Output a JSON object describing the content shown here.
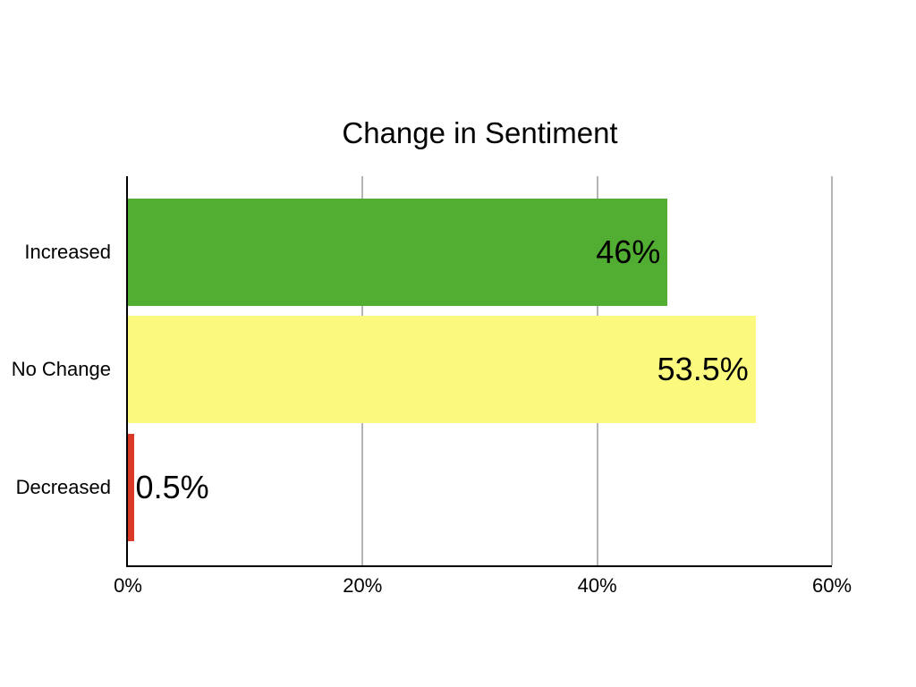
{
  "chart_data": {
    "type": "bar",
    "orientation": "horizontal",
    "title": "Change in Sentiment",
    "categories": [
      "Increased",
      "No Change",
      "Decreased"
    ],
    "values": [
      46,
      53.5,
      0.5
    ],
    "value_labels": [
      "46%",
      "53.5%",
      "0.5%"
    ],
    "bar_colors": [
      "#52AE32",
      "#FBFA7E",
      "#DB3927"
    ],
    "x_ticks": [
      "0%",
      "20%",
      "40%",
      "60%"
    ],
    "x_tick_values": [
      0,
      20,
      40,
      60
    ],
    "xlim": [
      0,
      60
    ],
    "xlabel": "",
    "ylabel": "",
    "grid": "vertical",
    "legend": "none",
    "colors": {
      "background": "#FFFFFF",
      "gridline": "#B5B5B5",
      "axis": "#000000",
      "text": "#000000"
    }
  }
}
